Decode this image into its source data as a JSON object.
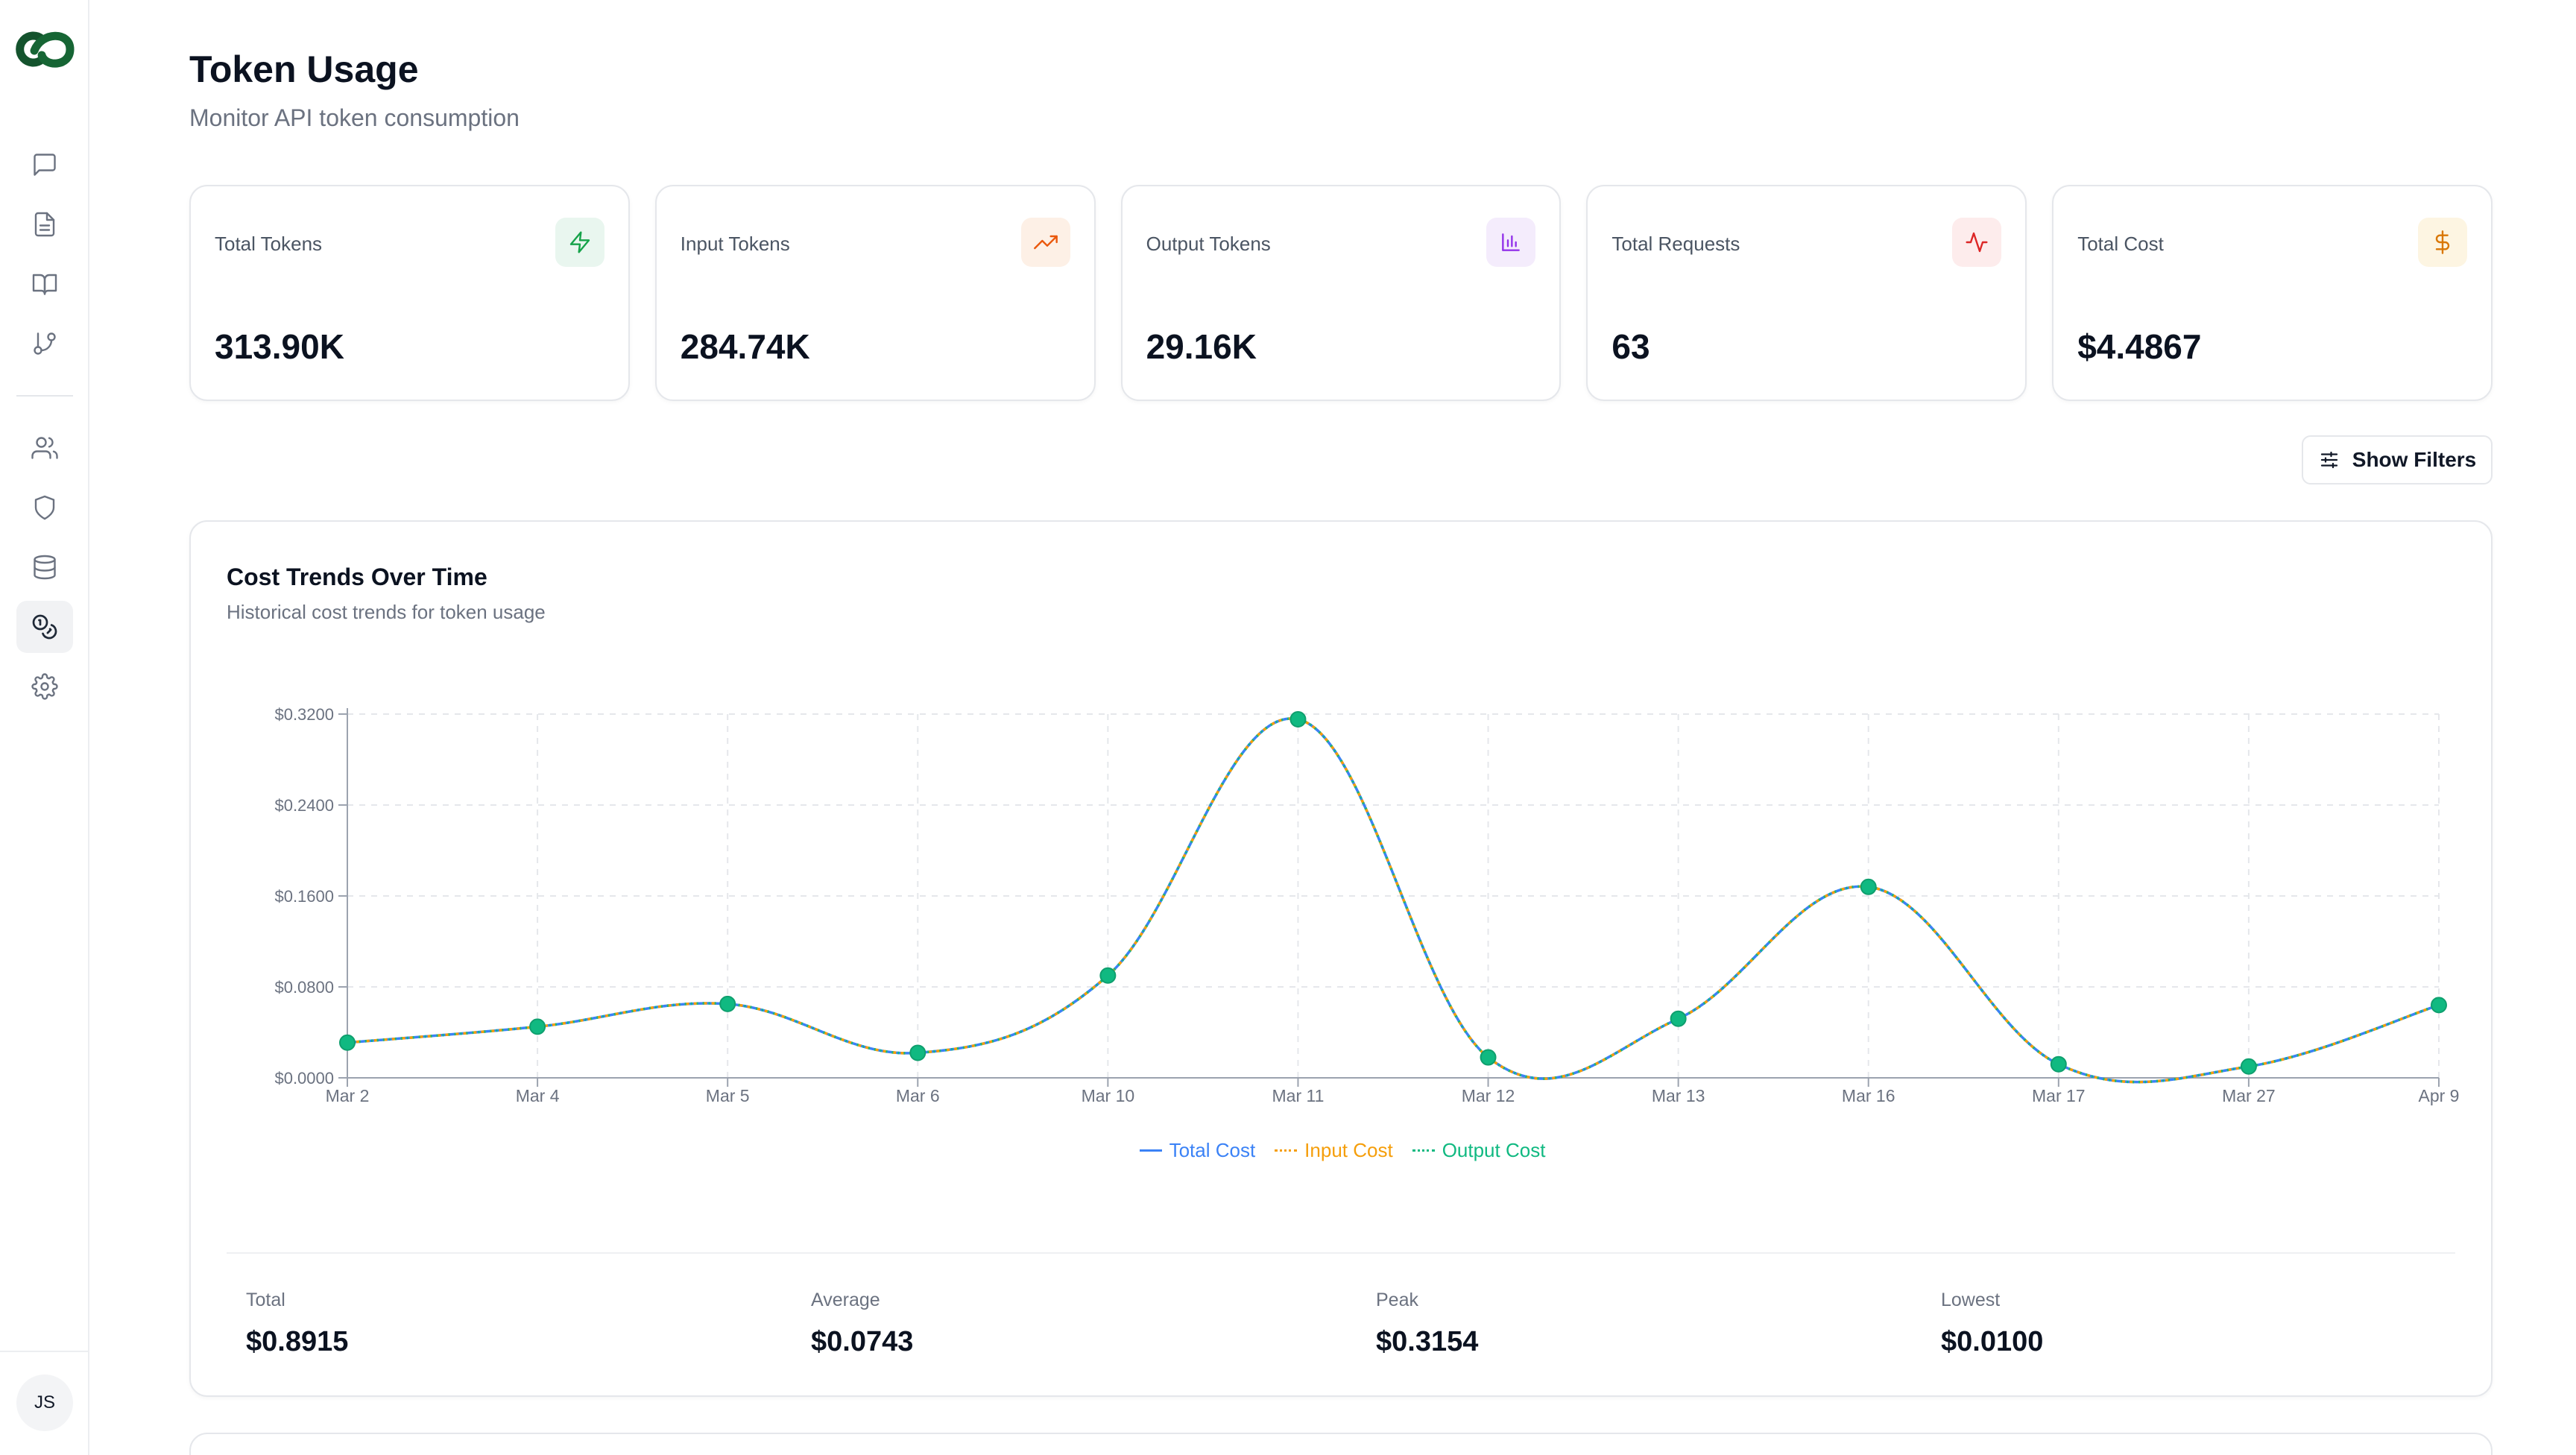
{
  "user": {
    "initials": "JS"
  },
  "header": {
    "title": "Token Usage",
    "subtitle": "Monitor API token consumption"
  },
  "cards": [
    {
      "label": "Total Tokens",
      "value": "313.90K",
      "icon": "zap-icon",
      "accent": "#16a34a",
      "bg": "#e9f6ef"
    },
    {
      "label": "Input Tokens",
      "value": "284.74K",
      "icon": "trending-up-icon",
      "accent": "#ea580c",
      "bg": "#fdf0e6"
    },
    {
      "label": "Output Tokens",
      "value": "29.16K",
      "icon": "bar-chart-icon",
      "accent": "#9333ea",
      "bg": "#f4ecfc"
    },
    {
      "label": "Total Requests",
      "value": "63",
      "icon": "activity-icon",
      "accent": "#dc2626",
      "bg": "#fdecec"
    },
    {
      "label": "Total Cost",
      "value": "$4.4867",
      "icon": "dollar-icon",
      "accent": "#d97706",
      "bg": "#fdf5e2"
    }
  ],
  "filters": {
    "label": "Show Filters"
  },
  "chart": {
    "title": "Cost Trends Over Time",
    "subtitle": "Historical cost trends for token usage",
    "legend": [
      {
        "name": "Total Cost",
        "color": "#3b82f6"
      },
      {
        "name": "Input Cost",
        "color": "#f59e0b"
      },
      {
        "name": "Output Cost",
        "color": "#10b981"
      }
    ]
  },
  "chart_data": {
    "type": "line",
    "title": "Cost Trends Over Time",
    "x": [
      "Mar 2",
      "Mar 4",
      "Mar 5",
      "Mar 6",
      "Mar 10",
      "Mar 11",
      "Mar 12",
      "Mar 13",
      "Mar 16",
      "Mar 17",
      "Mar 27",
      "Apr 9"
    ],
    "y_ticks": [
      "$0.0000",
      "$0.0800",
      "$0.1600",
      "$0.2400",
      "$0.3200"
    ],
    "ylim": [
      0,
      0.32
    ],
    "series": [
      {
        "name": "Total Cost",
        "values": [
          0.031,
          0.045,
          0.065,
          0.022,
          0.09,
          0.3154,
          0.018,
          0.052,
          0.168,
          0.012,
          0.01,
          0.064
        ]
      },
      {
        "name": "Input Cost",
        "values": [
          0.031,
          0.045,
          0.065,
          0.022,
          0.09,
          0.3154,
          0.018,
          0.052,
          0.168,
          0.012,
          0.01,
          0.064
        ]
      },
      {
        "name": "Output Cost",
        "values": [
          0.031,
          0.045,
          0.065,
          0.022,
          0.09,
          0.3154,
          0.018,
          0.052,
          0.168,
          0.012,
          0.01,
          0.064
        ]
      }
    ],
    "grid": true,
    "legend_position": "bottom"
  },
  "stats": [
    {
      "label": "Total",
      "value": "$0.8915"
    },
    {
      "label": "Average",
      "value": "$0.0743"
    },
    {
      "label": "Peak",
      "value": "$0.3154"
    },
    {
      "label": "Lowest",
      "value": "$0.0100"
    }
  ]
}
